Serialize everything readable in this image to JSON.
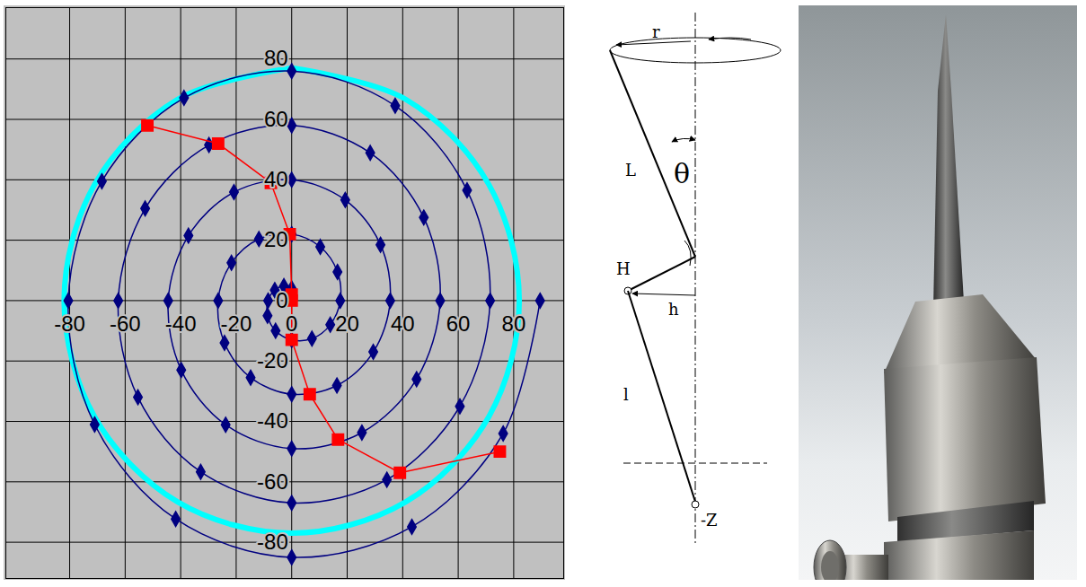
{
  "chart_data": {
    "type": "scatter",
    "xlim": [
      -103,
      98
    ],
    "ylim": [
      -92,
      97
    ],
    "xticks": [
      -80,
      -60,
      -40,
      -20,
      0,
      20,
      40,
      60,
      80
    ],
    "yticks": [
      -80,
      -60,
      -40,
      -20,
      0,
      20,
      40,
      60,
      80
    ],
    "grid": true,
    "series": [
      {
        "type": "line",
        "color": "#00ffff",
        "line_style": "solid",
        "x": [
          0,
          41,
          71,
          82,
          71,
          41,
          0,
          -41,
          -71,
          -82,
          -71,
          -41,
          0
        ],
        "values": [
          77,
          66.7,
          38.5,
          0,
          -38.5,
          -66.7,
          -77,
          -66.7,
          -38.5,
          0,
          38.5,
          66.7,
          77
        ]
      },
      {
        "type": "line",
        "color": "#000080",
        "marker": "diamond",
        "line_style": "solid",
        "x": [
          0,
          -2.8,
          -6.1,
          -8.5,
          -8.7,
          -5.8,
          0,
          7.3,
          13.9,
          17.5,
          16.5,
          10.3,
          0,
          -11.8,
          -21.7,
          -26.5,
          -24.2,
          -14.8,
          0,
          16.3,
          29.4,
          35.5,
          32,
          19.3,
          0,
          -20.8,
          -37.2,
          -44.5,
          -39.8,
          -23.8,
          0,
          25.3,
          45,
          53.5,
          47.6,
          28.3,
          0,
          -29.8,
          -52.8,
          -62.5,
          -55.4,
          -32.8,
          0,
          34.3,
          60.6,
          71.5,
          63.2,
          37.3,
          0,
          -38.8,
          -68.4,
          -80.5,
          -71,
          -41.8,
          0,
          43.3,
          76.2,
          89.5
        ],
        "values": [
          4,
          4.8,
          3.5,
          0,
          -5,
          -10,
          -13,
          -12.6,
          -8,
          0,
          9.5,
          17.8,
          22,
          20.4,
          12.5,
          0,
          -14,
          -25.5,
          -31,
          -28.1,
          -17,
          0,
          18.5,
          33.3,
          40,
          35.9,
          21.5,
          0,
          -23,
          -41.1,
          -49,
          -43.7,
          -26,
          0,
          27.5,
          48.9,
          58,
          51.5,
          30.5,
          0,
          -32,
          -56.7,
          -67,
          -59.3,
          -35,
          0,
          36.5,
          64.5,
          76,
          67.1,
          39.5,
          0,
          -41,
          -72.3,
          -85,
          -74.9,
          -44,
          0
        ]
      },
      {
        "type": "line",
        "color": "#ff0000",
        "marker": "square",
        "line_style": "solid",
        "x": [
          -52,
          -26.5,
          -7.5,
          -0.7,
          0,
          0,
          0,
          6.5,
          16.7,
          39,
          75
        ],
        "values": [
          58,
          52,
          39,
          22,
          2,
          0,
          -13,
          -31,
          -46,
          -57,
          -50
        ]
      }
    ]
  },
  "diagram": {
    "labels": [
      "r",
      "L",
      "θ",
      "H",
      "h",
      "l",
      "-Z"
    ]
  }
}
